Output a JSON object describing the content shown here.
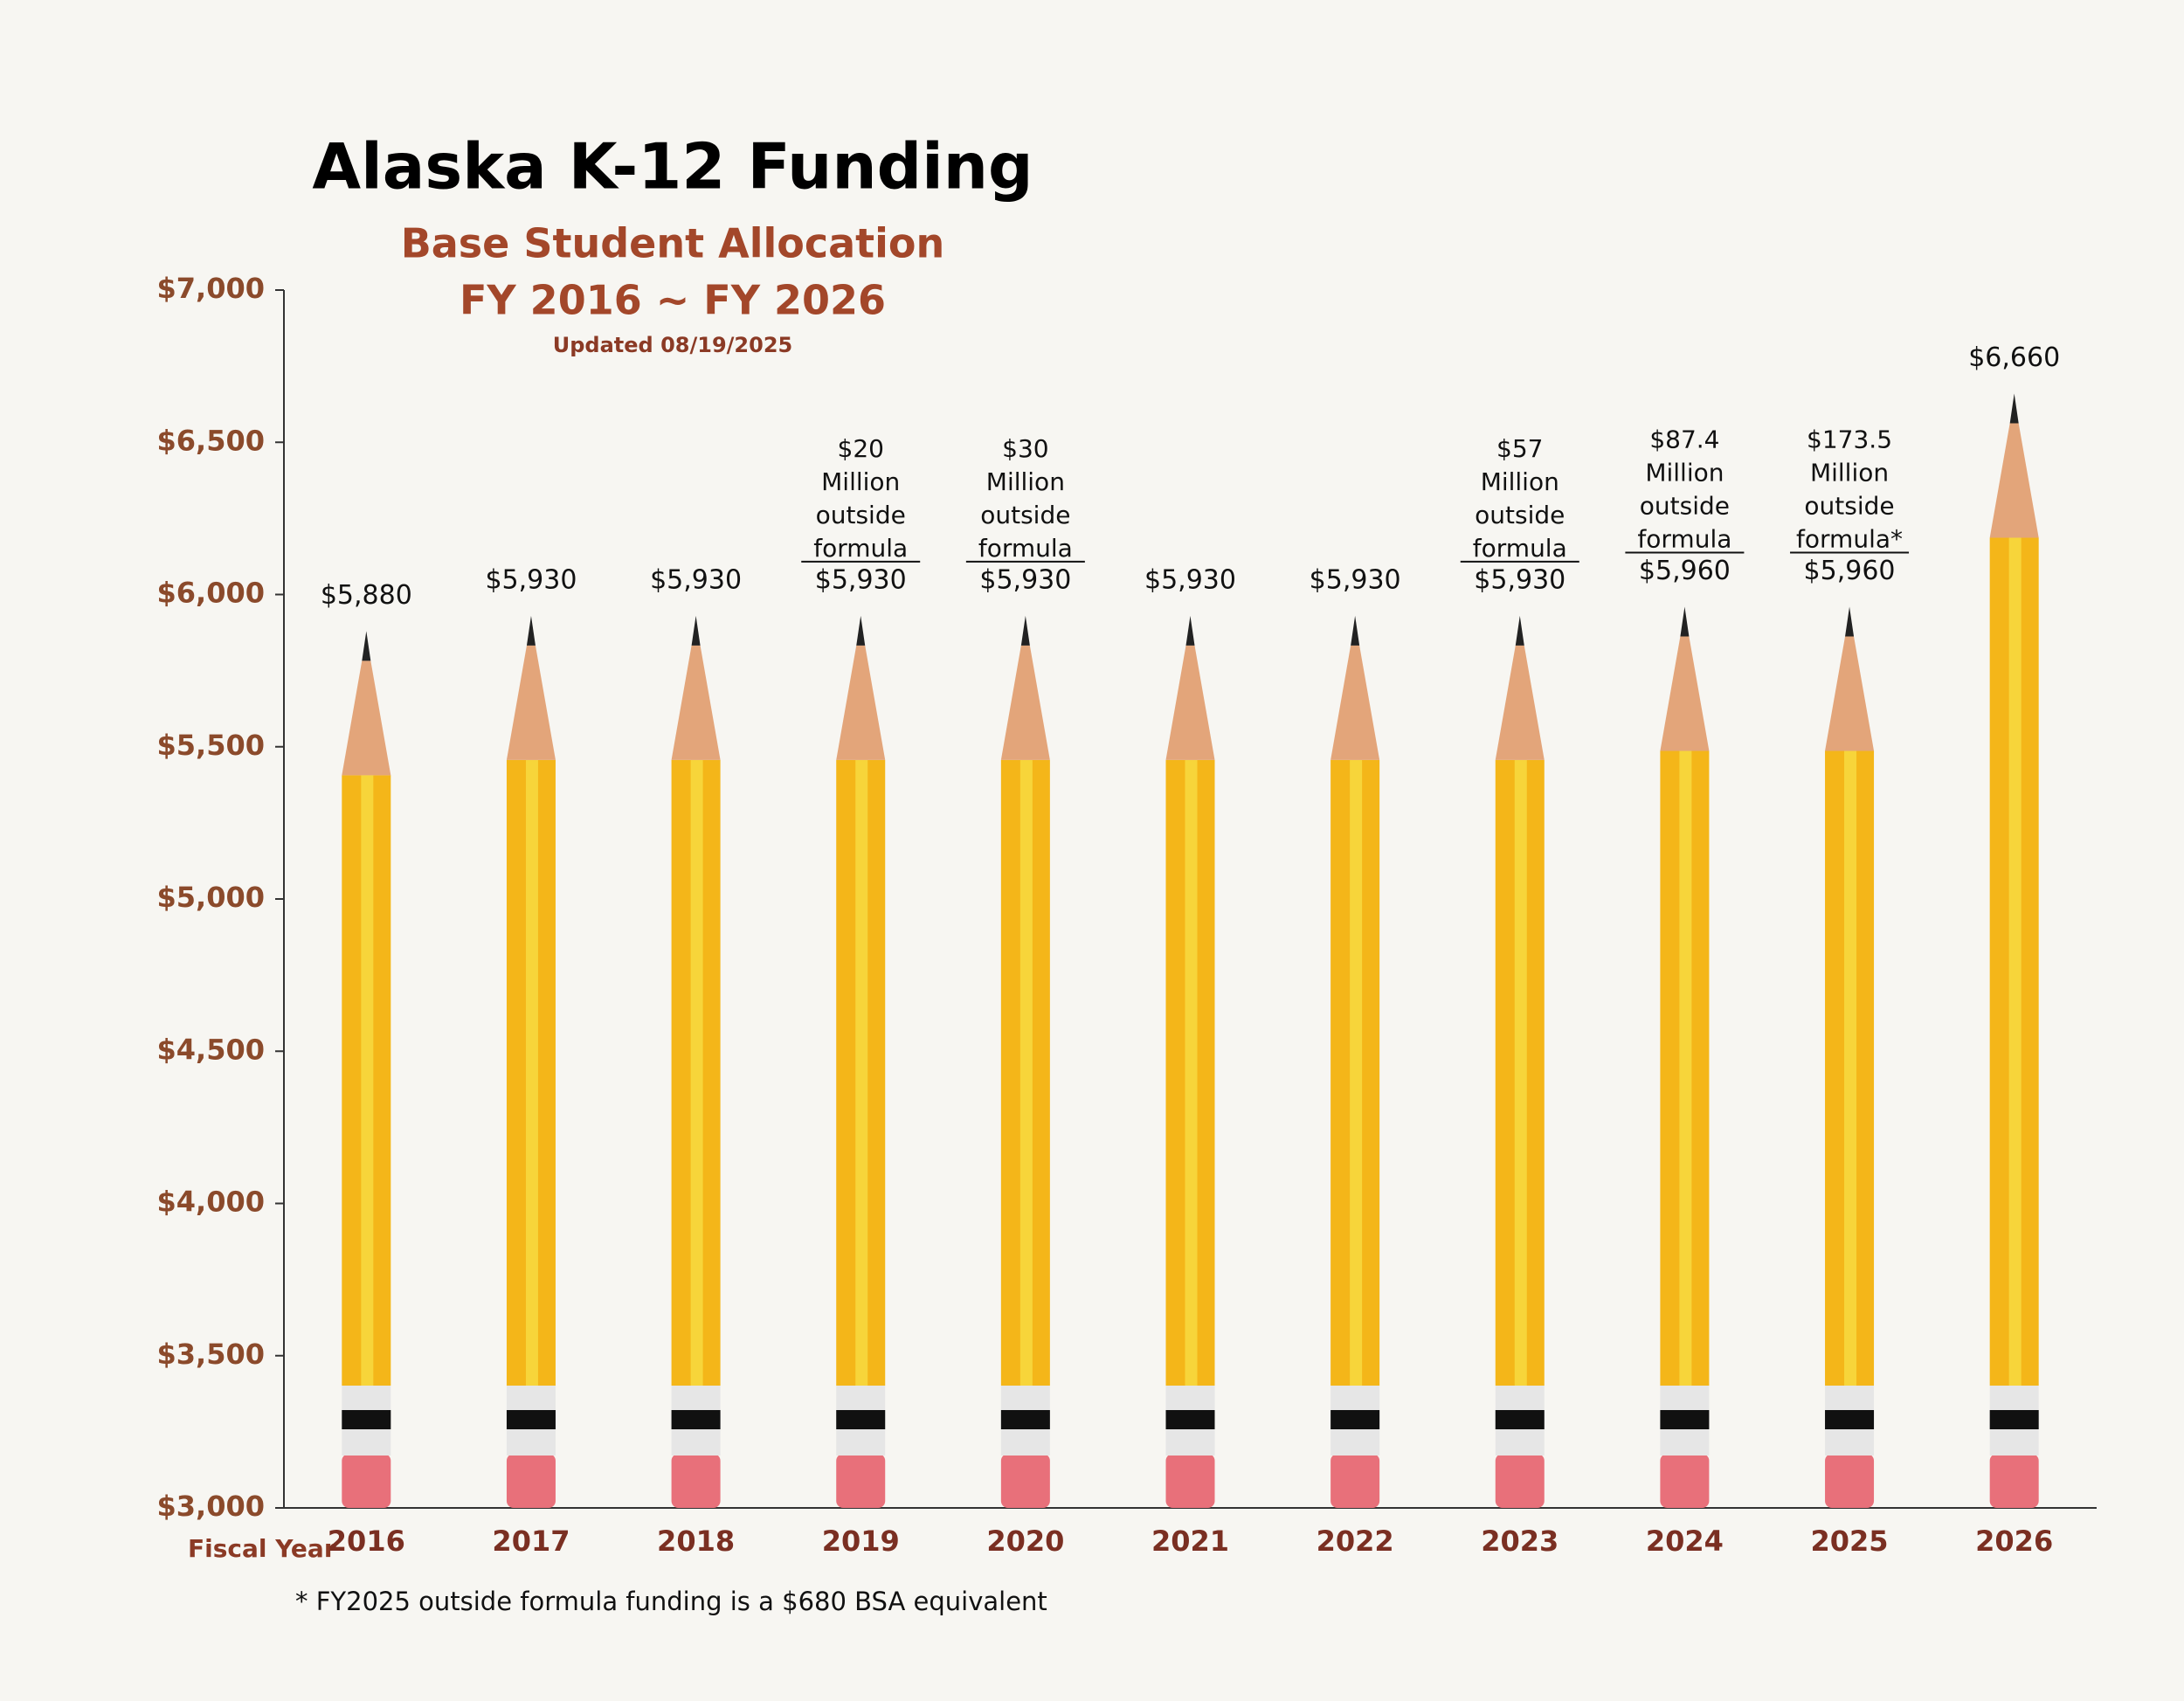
{
  "chart_data": {
    "type": "bar",
    "title": "Alaska K-12 Funding",
    "subtitle": "Base Student Allocation",
    "period": "FY 2016 ~ FY 2026",
    "updated": "Updated 08/19/2025",
    "x_label": "Fiscal Year",
    "categories": [
      "2016",
      "2017",
      "2018",
      "2019",
      "2020",
      "2021",
      "2022",
      "2023",
      "2024",
      "2025",
      "2026"
    ],
    "values": [
      5880,
      5930,
      5930,
      5930,
      5930,
      5930,
      5930,
      5930,
      5960,
      5960,
      6660
    ],
    "value_labels": [
      "$5,880",
      "$5,930",
      "$5,930",
      "$5,930",
      "$5,930",
      "$5,930",
      "$5,930",
      "$5,930",
      "$5,960",
      "$5,960",
      "$6,660"
    ],
    "annotations": [
      null,
      null,
      null,
      [
        "$20",
        "Million",
        "outside",
        "formula"
      ],
      [
        "$30",
        "Million",
        "outside",
        "formula"
      ],
      null,
      null,
      [
        "$57",
        "Million",
        "outside",
        "formula"
      ],
      [
        "$87.4",
        "Million",
        "outside",
        "formula"
      ],
      [
        "$173.5",
        "Million",
        "outside",
        "formula*"
      ],
      null
    ],
    "color": "#f4b619",
    "ylim": [
      3000,
      7000
    ],
    "yticks": [
      {
        "value": 3000,
        "label": "$3,000"
      },
      {
        "value": 3500,
        "label": "$3,500"
      },
      {
        "value": 4000,
        "label": "$4,000"
      },
      {
        "value": 4500,
        "label": "$4,500"
      },
      {
        "value": 5000,
        "label": "$5,000"
      },
      {
        "value": 5500,
        "label": "$5,500"
      },
      {
        "value": 6000,
        "label": "$6,000"
      },
      {
        "value": 6500,
        "label": "$6,500"
      },
      {
        "value": 7000,
        "label": "$7,000"
      }
    ],
    "grid": false,
    "footnote": "* FY2025 outside formula funding is a $680 BSA equivalent"
  }
}
